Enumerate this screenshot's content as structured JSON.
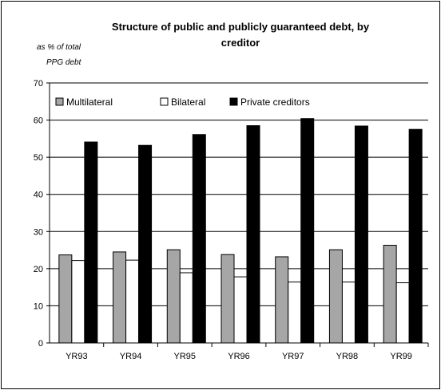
{
  "chart_data": {
    "type": "bar",
    "title_line1": "Structure of public and publicly guaranteed debt, by",
    "title_line2": "creditor",
    "unit_line1": "as % of total",
    "unit_line2": "PPG debt",
    "categories": [
      "YR93",
      "YR94",
      "YR95",
      "YR96",
      "YR97",
      "YR98",
      "YR99"
    ],
    "series": [
      {
        "name": "Multilateral",
        "color": "#a6a6a6",
        "values": [
          23.7,
          24.5,
          25.1,
          23.8,
          23.2,
          25.1,
          26.3
        ]
      },
      {
        "name": "Bilateral",
        "color": "#ffffff",
        "values": [
          22.2,
          22.3,
          18.9,
          17.8,
          16.4,
          16.4,
          16.2
        ]
      },
      {
        "name": "Private creditors",
        "color": "#000000",
        "values": [
          54.1,
          53.2,
          56.1,
          58.5,
          60.4,
          58.4,
          57.5
        ]
      }
    ],
    "yticks": [
      "0",
      "10",
      "20",
      "30",
      "40",
      "50",
      "60",
      "70"
    ],
    "ylim": [
      0,
      70
    ],
    "grid": true,
    "legend_position": "top-left, inside plot"
  }
}
